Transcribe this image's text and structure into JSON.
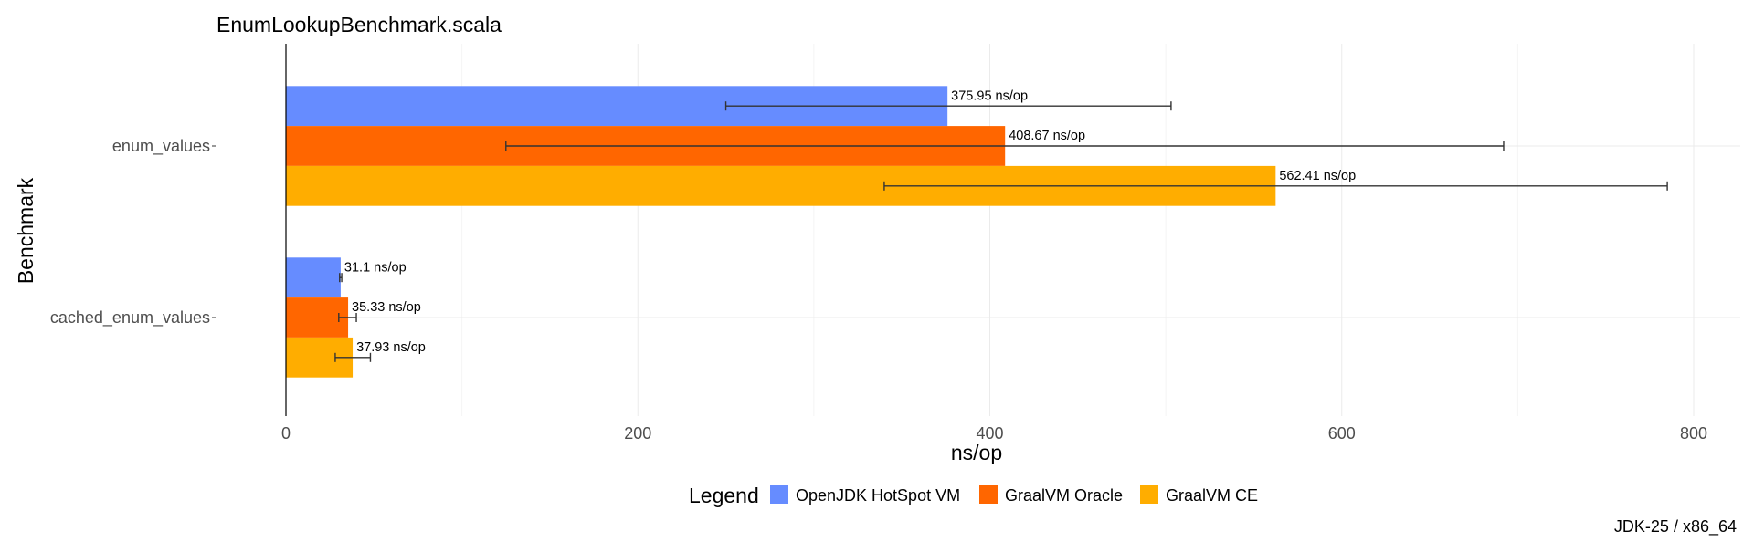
{
  "chart_data": {
    "type": "bar",
    "orientation": "horizontal",
    "title": "EnumLookupBenchmark.scala",
    "xlabel": "ns/op",
    "ylabel": "Benchmark",
    "caption": "JDK-25 / x86_64",
    "xlim": [
      0,
      830
    ],
    "x_ticks": [
      0,
      200,
      400,
      600,
      800
    ],
    "grid": true,
    "legend_title": "Legend",
    "legend_position": "bottom",
    "categories": [
      "enum_values",
      "cached_enum_values"
    ],
    "series": [
      {
        "name": "OpenJDK HotSpot VM",
        "color": "#668cff",
        "values": [
          375.95,
          31.1
        ],
        "error_low": [
          250,
          30.5
        ],
        "error_high": [
          503,
          31.7
        ],
        "labels": [
          "375.95 ns/op",
          "31.1 ns/op"
        ]
      },
      {
        "name": "GraalVM Oracle",
        "color": "#ff6600",
        "values": [
          408.67,
          35.33
        ],
        "error_low": [
          125,
          30
        ],
        "error_high": [
          692,
          40
        ],
        "labels": [
          "408.67 ns/op",
          "35.33 ns/op"
        ]
      },
      {
        "name": "GraalVM CE",
        "color": "#ffad00",
        "values": [
          562.41,
          37.93
        ],
        "error_low": [
          340,
          28
        ],
        "error_high": [
          785,
          48
        ],
        "labels": [
          "562.41 ns/op",
          "37.93 ns/op"
        ]
      }
    ]
  }
}
